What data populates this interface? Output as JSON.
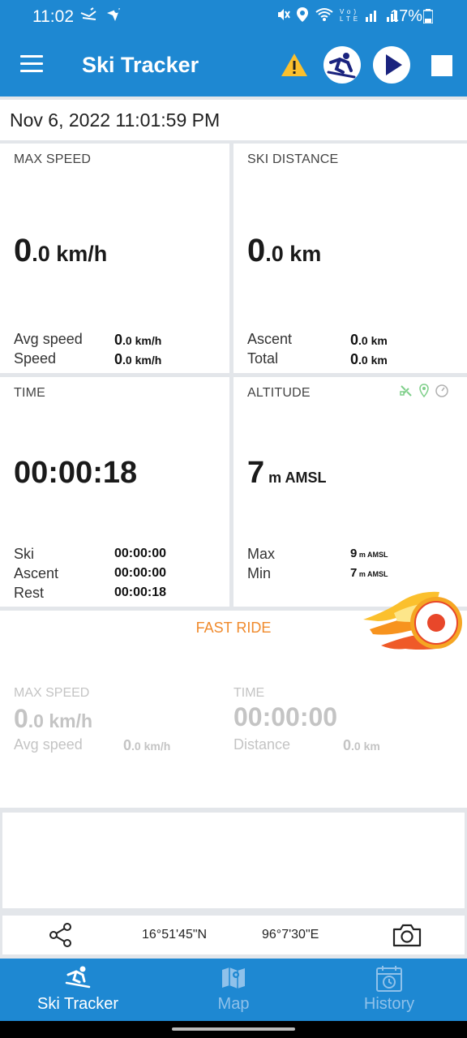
{
  "status_bar": {
    "time": "11:02",
    "battery": "17%",
    "icons": [
      "mute-icon",
      "location-icon",
      "wifi-icon",
      "volte-icon",
      "signal-icon",
      "battery-icon"
    ]
  },
  "app_bar": {
    "title": "Ski Tracker",
    "icons": [
      "menu-icon",
      "warning-icon",
      "skier-icon",
      "play-icon",
      "stop-icon"
    ]
  },
  "datetime": "Nov 6, 2022 11:01:59 PM",
  "max_speed": {
    "label": "MAX SPEED",
    "value_int": "0",
    "value_dec": ".0",
    "unit": " km/h",
    "avg_label": "Avg speed",
    "avg_int": "0",
    "avg_dec": ".0 km/h",
    "speed_label": "Speed",
    "speed_int": "0",
    "speed_dec": ".0 km/h"
  },
  "ski_distance": {
    "label": "SKI DISTANCE",
    "value_int": "0",
    "value_dec": ".0",
    "unit": " km",
    "ascent_label": "Ascent",
    "ascent_int": "0",
    "ascent_dec": ".0 km",
    "total_label": "Total",
    "total_int": "0",
    "total_dec": ".0 km"
  },
  "time": {
    "label": "TIME",
    "value": "00:00:18",
    "ski_label": "Ski",
    "ski_value": "00:00:00",
    "ascent_label": "Ascent",
    "ascent_value": "00:00:00",
    "rest_label": "Rest",
    "rest_value": "00:00:18"
  },
  "altitude": {
    "label": "ALTITUDE",
    "value": "7",
    "unit": " m AMSL",
    "max_label": "Max",
    "max_value": "9",
    "max_unit": " m AMSL",
    "min_label": "Min",
    "min_value": "7",
    "min_unit": " m AMSL",
    "source_icons": [
      "satellite-icon",
      "gps-pin-icon",
      "barometer-icon"
    ]
  },
  "fast_ride": {
    "title": "FAST RIDE",
    "max_speed_label": "MAX SPEED",
    "max_speed_int": "0",
    "max_speed_dec": ".0 km/h",
    "avg_label": "Avg speed",
    "avg_int": "0",
    "avg_dec": ".0 km/h",
    "time_label": "TIME",
    "time_value": "00:00:00",
    "distance_label": "Distance",
    "distance_int": "0",
    "distance_dec": ".0 km"
  },
  "location": {
    "latitude": "16°51'45\"N",
    "longitude": "96°7'30\"E",
    "icons": [
      "share-icon",
      "camera-icon"
    ]
  },
  "bottom_nav": {
    "items": [
      {
        "label": "Ski Tracker",
        "icon": "skier-icon",
        "active": true
      },
      {
        "label": "Map",
        "icon": "map-icon",
        "active": false
      },
      {
        "label": "History",
        "icon": "calendar-history-icon",
        "active": false
      }
    ]
  },
  "colors": {
    "primary": "#1e88d2",
    "accent_orange": "#f08a2c",
    "record_red": "#e8472a",
    "dark_navy": "#1a237e"
  }
}
